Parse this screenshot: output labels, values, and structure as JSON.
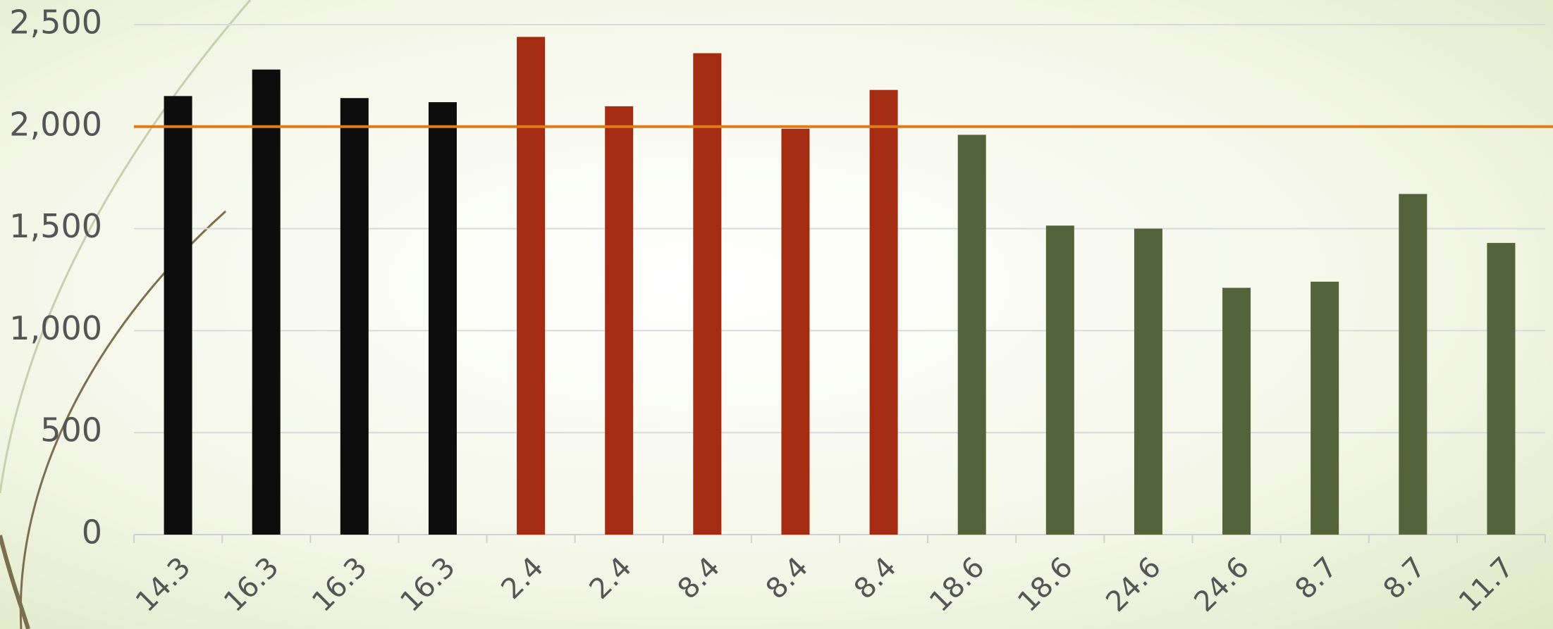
{
  "chart_data": {
    "type": "bar",
    "categories": [
      "14.3",
      "16.3",
      "16.3",
      "16.3",
      "2.4",
      "2.4",
      "8.4",
      "8.4",
      "8.4",
      "18.6",
      "18.6",
      "24.6",
      "24.6",
      "8.7",
      "8.7",
      "11.7"
    ],
    "values": [
      2150,
      2280,
      2140,
      2120,
      2440,
      2100,
      2360,
      1990,
      2180,
      1960,
      1515,
      1500,
      1210,
      1240,
      1670,
      1430
    ],
    "colors": [
      "#0d0d0d",
      "#0d0d0d",
      "#0d0d0d",
      "#0d0d0d",
      "#a32c12",
      "#a32c12",
      "#a32c12",
      "#a32c12",
      "#a32c12",
      "#53643b",
      "#53643b",
      "#53643b",
      "#53643b",
      "#53643b",
      "#53643b",
      "#53643b"
    ],
    "ylim": [
      0,
      2500
    ],
    "yticks": [
      0,
      500,
      {
        "value": 1000,
        "label": "1,000"
      },
      {
        "value": 1500,
        "label": "1,500"
      },
      {
        "value": 2000,
        "label": "2,000"
      },
      {
        "value": 2500,
        "label": "2,500"
      }
    ],
    "grid": true,
    "reference_line": {
      "value": 2000,
      "color": "#e07b1a"
    }
  }
}
